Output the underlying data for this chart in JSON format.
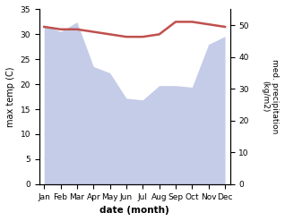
{
  "months": [
    "Jan",
    "Feb",
    "Mar",
    "Apr",
    "May",
    "Jun",
    "Jul",
    "Aug",
    "Sep",
    "Oct",
    "Nov",
    "Dec"
  ],
  "month_indices": [
    0,
    1,
    2,
    3,
    4,
    5,
    6,
    7,
    8,
    9,
    10,
    11
  ],
  "temperature": [
    31.5,
    31.0,
    31.0,
    30.5,
    30.0,
    29.5,
    29.5,
    30.0,
    32.5,
    32.5,
    32.0,
    31.5
  ],
  "precipitation": [
    50.0,
    48.0,
    51.0,
    37.0,
    35.0,
    27.0,
    26.5,
    31.0,
    31.0,
    30.5,
    44.0,
    46.5
  ],
  "temp_color": "#c0504d",
  "precip_fill_color": "#c5cce8",
  "ylabel_left": "max temp (C)",
  "ylabel_right": "med. precipitation\n(kg/m2)",
  "xlabel": "date (month)",
  "ylim_left": [
    0,
    35
  ],
  "ylim_right": [
    0,
    55
  ],
  "yticks_left": [
    0,
    5,
    10,
    15,
    20,
    25,
    30,
    35
  ],
  "yticks_right": [
    0,
    10,
    20,
    30,
    40,
    50
  ],
  "temp_linewidth": 1.8
}
